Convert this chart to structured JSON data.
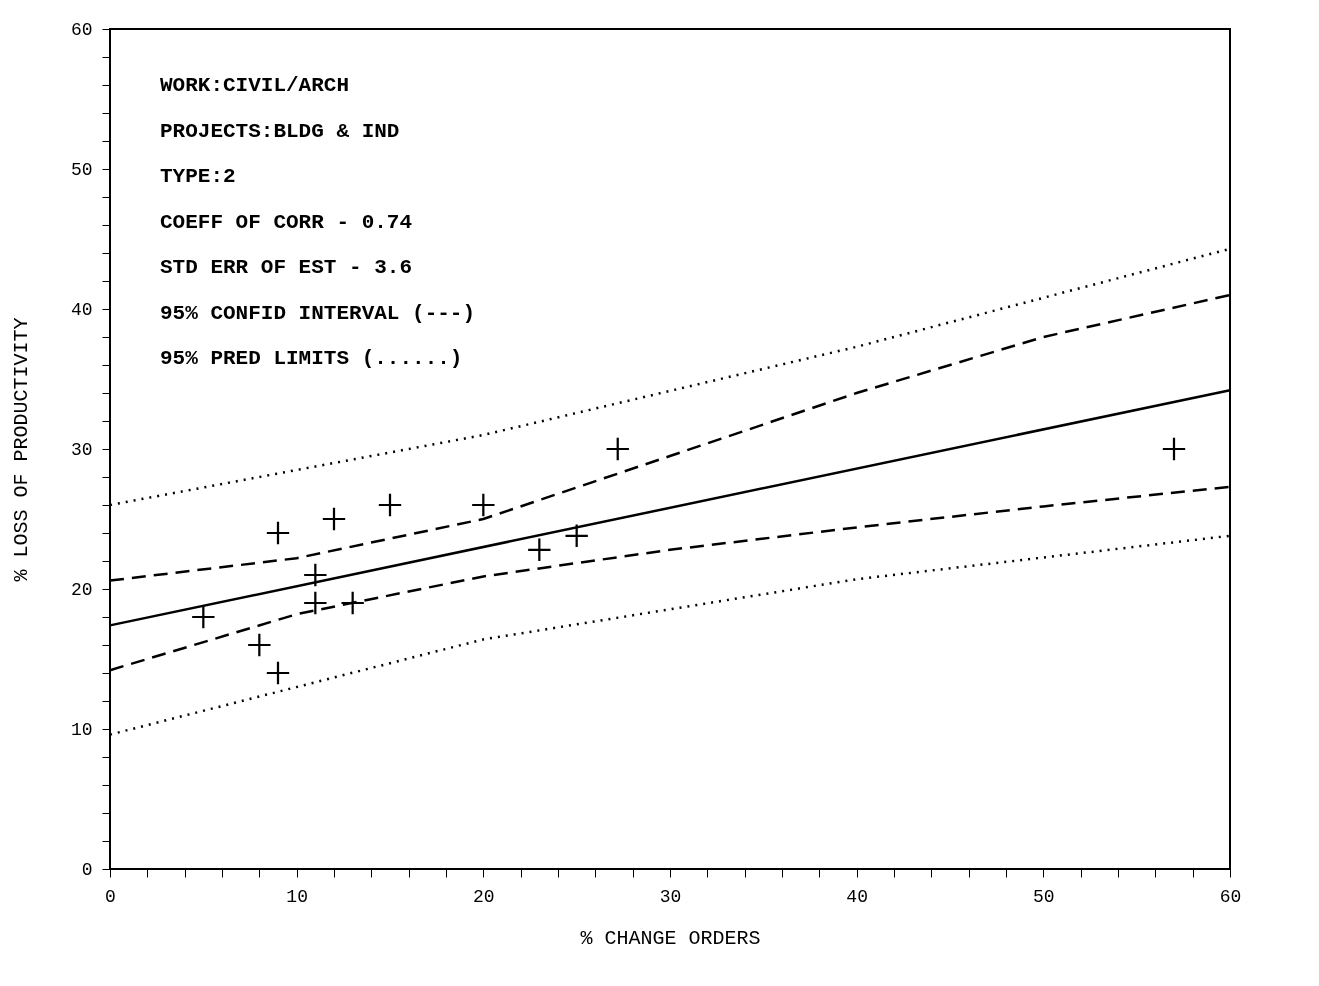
{
  "chart_data": {
    "type": "scatter",
    "xlabel": "% CHANGE ORDERS",
    "ylabel": "% LOSS OF PRODUCTIVITY",
    "annotations": [
      "WORK:CIVIL/ARCH",
      "PROJECTS:BLDG & IND",
      "TYPE:2",
      "COEFF OF CORR - 0.74",
      "STD ERR OF EST - 3.6",
      "95% CONFID INTERVAL (---)",
      "95% PRED LIMITS      (......)"
    ],
    "xlim": [
      0,
      60
    ],
    "ylim": [
      0,
      60
    ],
    "xticks": [
      0,
      {
        "value": 2,
        "label": null
      },
      {
        "value": 4,
        "label": null
      },
      {
        "value": 6,
        "label": null
      },
      {
        "value": 8,
        "label": null
      },
      10,
      {
        "value": 12,
        "label": null
      },
      {
        "value": 14,
        "label": null
      },
      {
        "value": 16,
        "label": null
      },
      {
        "value": 18,
        "label": null
      },
      20,
      {
        "value": 22,
        "label": null
      },
      {
        "value": 24,
        "label": null
      },
      {
        "value": 26,
        "label": null
      },
      {
        "value": 28,
        "label": null
      },
      30,
      {
        "value": 32,
        "label": null
      },
      {
        "value": 34,
        "label": null
      },
      {
        "value": 36,
        "label": null
      },
      {
        "value": 38,
        "label": null
      },
      40,
      {
        "value": 42,
        "label": null
      },
      {
        "value": 44,
        "label": null
      },
      {
        "value": 46,
        "label": null
      },
      {
        "value": 48,
        "label": null
      },
      50,
      {
        "value": 52,
        "label": null
      },
      {
        "value": 54,
        "label": null
      },
      {
        "value": 56,
        "label": null
      },
      {
        "value": 58,
        "label": null
      },
      60
    ],
    "yticks": [
      0,
      {
        "value": 2,
        "label": null
      },
      {
        "value": 4,
        "label": null
      },
      {
        "value": 6,
        "label": null
      },
      {
        "value": 8,
        "label": null
      },
      10,
      {
        "value": 12,
        "label": null
      },
      {
        "value": 14,
        "label": null
      },
      {
        "value": 16,
        "label": null
      },
      {
        "value": 18,
        "label": null
      },
      20,
      {
        "value": 22,
        "label": null
      },
      {
        "value": 24,
        "label": null
      },
      {
        "value": 26,
        "label": null
      },
      {
        "value": 28,
        "label": null
      },
      30,
      {
        "value": 32,
        "label": null
      },
      {
        "value": 34,
        "label": null
      },
      {
        "value": 36,
        "label": null
      },
      {
        "value": 38,
        "label": null
      },
      40,
      {
        "value": 42,
        "label": null
      },
      {
        "value": 44,
        "label": null
      },
      {
        "value": 46,
        "label": null
      },
      {
        "value": 48,
        "label": null
      },
      50,
      {
        "value": 52,
        "label": null
      },
      {
        "value": 54,
        "label": null
      },
      {
        "value": 56,
        "label": null
      },
      {
        "value": 58,
        "label": null
      },
      60
    ],
    "series": [
      {
        "type": "scatter",
        "marker": "cross",
        "color": "#000000",
        "x": [
          5,
          8,
          9,
          9,
          11,
          11,
          12,
          13,
          15,
          20,
          23,
          25,
          27.2,
          57
        ],
        "values": [
          18,
          16,
          24,
          14,
          21,
          19,
          25,
          19,
          26,
          26,
          22.8,
          23.8,
          30,
          30
        ]
      },
      {
        "type": "line",
        "line_style": "solid",
        "color": "#000000",
        "x": [
          0,
          60
        ],
        "values": [
          17.4,
          34.2
        ]
      },
      {
        "type": "line",
        "line_style": "dashed",
        "color": "#000000",
        "x": [
          0,
          10,
          20,
          30,
          40,
          50,
          60
        ],
        "values": [
          20.6,
          22.2,
          25,
          29.5,
          34,
          38,
          41
        ]
      },
      {
        "type": "line",
        "line_style": "dashed",
        "color": "#000000",
        "x": [
          0,
          10,
          20,
          30,
          40,
          50,
          60
        ],
        "values": [
          14.2,
          18.2,
          20.9,
          22.8,
          24.4,
          25.9,
          27.3
        ]
      },
      {
        "type": "line",
        "line_style": "dotted",
        "color": "#000000",
        "x": [
          0,
          20,
          40,
          60
        ],
        "values": [
          26,
          31,
          37.3,
          44.3
        ]
      },
      {
        "type": "line",
        "line_style": "dotted",
        "color": "#000000",
        "x": [
          0,
          20,
          40,
          60
        ],
        "values": [
          9.6,
          16.4,
          20.7,
          23.8
        ]
      }
    ]
  }
}
